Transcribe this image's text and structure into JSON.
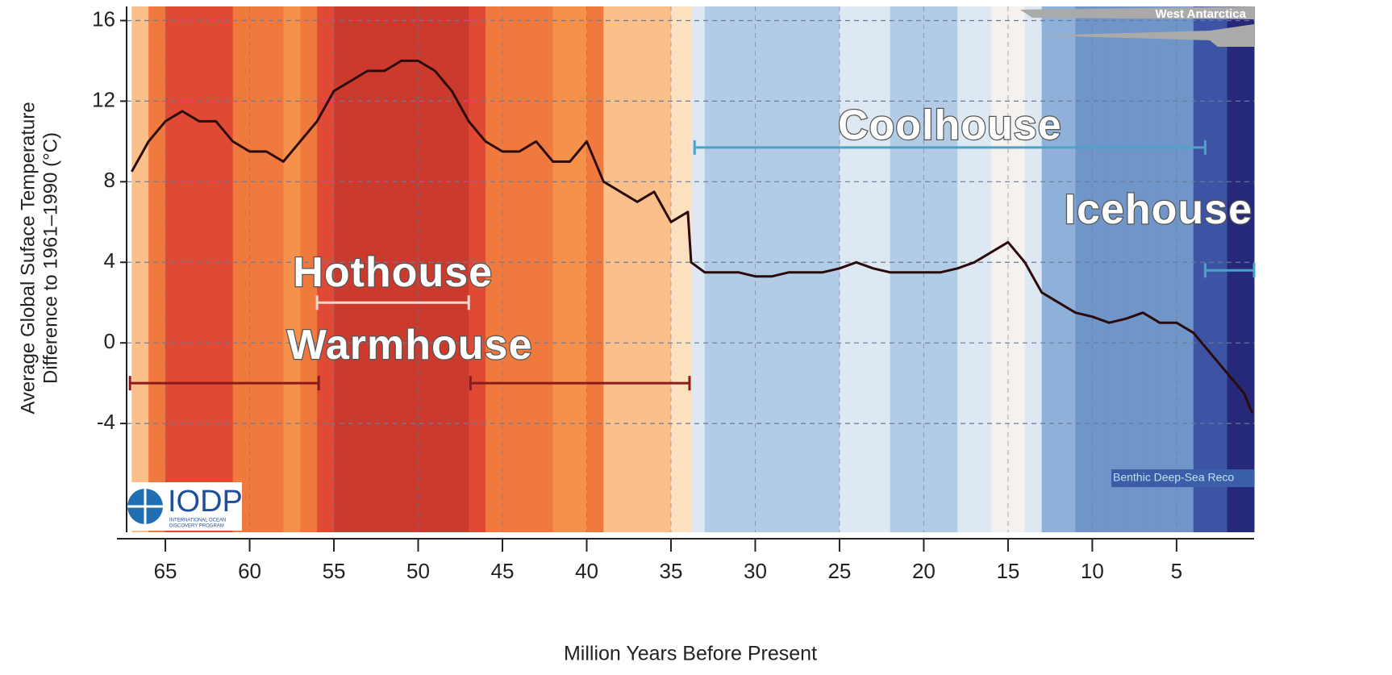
{
  "chart_data": {
    "type": "line",
    "y_label_lines": [
      "Average Global Suface Temperature",
      "Difference to 1961–1990 (°C)"
    ],
    "x_label": "Million Years Before Present",
    "x": [
      67,
      66,
      65,
      64,
      63,
      62,
      61,
      60,
      59,
      58,
      57,
      56,
      55,
      54,
      53,
      52,
      51,
      50,
      49,
      48,
      47,
      46,
      45,
      44,
      43,
      42,
      41,
      40,
      39,
      38,
      37,
      36,
      35,
      34,
      33.8,
      33,
      32,
      31,
      30,
      29,
      28,
      27,
      26,
      25,
      24,
      23,
      22,
      21,
      20,
      19,
      18,
      17,
      16,
      15,
      14,
      13,
      12,
      11,
      10,
      9,
      8,
      7,
      6,
      5,
      4,
      3,
      2,
      1,
      0.5
    ],
    "values": [
      8.5,
      10,
      11,
      11.5,
      11,
      11,
      10,
      9.5,
      9.5,
      9,
      10,
      11,
      12.5,
      13,
      13.5,
      13.5,
      14,
      14,
      13.5,
      12.5,
      11,
      10,
      9.5,
      9.5,
      10,
      9,
      9,
      10,
      8,
      7.5,
      7,
      7.5,
      6,
      6.5,
      4,
      3.5,
      3.5,
      3.5,
      3.3,
      3.3,
      3.5,
      3.5,
      3.5,
      3.7,
      4,
      3.7,
      3.5,
      3.5,
      3.5,
      3.5,
      3.7,
      4,
      4.5,
      5,
      4,
      2.5,
      2,
      1.5,
      1.3,
      1,
      1.2,
      1.5,
      1,
      1,
      0.5,
      -0.5,
      -1.5,
      -2.5,
      -3.5
    ],
    "color": "#2a0a0a",
    "xlim": [
      67.3,
      0.4
    ],
    "ylim": [
      -9.4,
      16.7
    ],
    "xticks": [
      65,
      60,
      55,
      50,
      45,
      40,
      35,
      30,
      25,
      20,
      15,
      10,
      5
    ],
    "yticks": [
      16,
      12,
      8,
      4,
      0,
      -4
    ],
    "grid": true,
    "annotations": [
      {
        "text": "Hothouse",
        "spans": [
          [
            56,
            47
          ]
        ],
        "y": 2,
        "color": "#f2d7d0"
      },
      {
        "text": "Warmhouse",
        "spans": [
          [
            67.1,
            55.9
          ],
          [
            46.9,
            33.9
          ]
        ],
        "y": -2,
        "color": "#8b1a1a"
      },
      {
        "text": "Coolhouse",
        "spans": [
          [
            33.6,
            3.3
          ]
        ],
        "y": 9.7,
        "color": "#4aa3c8"
      },
      {
        "text": "Icehouse",
        "spans": [
          [
            3.3,
            0.4
          ]
        ],
        "y": 3.6,
        "color": "#4aa3c8"
      }
    ],
    "ice_label": "West Antarctica",
    "record_label": "Benthic Deep-Sea Reco",
    "logo": {
      "name": "IODP",
      "subtitle_lines": [
        "INTERNATIONAL OCEAN",
        "DISCOVERY PROGRAM"
      ]
    }
  }
}
